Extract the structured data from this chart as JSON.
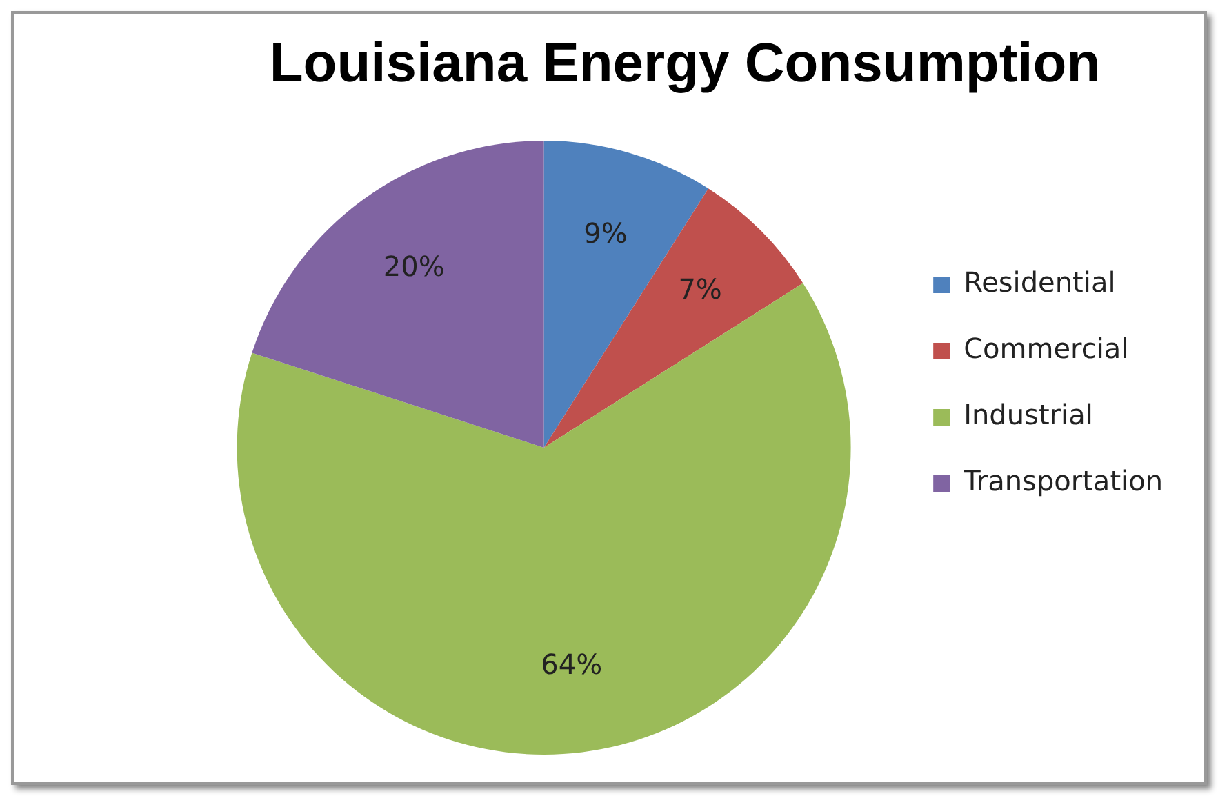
{
  "chart_data": {
    "type": "pie",
    "title": "Louisiana Energy Consumption",
    "categories": [
      "Residential",
      "Commercial",
      "Industrial",
      "Transportation"
    ],
    "values": [
      9,
      7,
      64,
      20
    ],
    "colors": [
      "#4f81bd",
      "#c0504d",
      "#9bbb59",
      "#8064a2"
    ],
    "value_labels": [
      "9%",
      "7%",
      "64%",
      "20%"
    ],
    "legend": "right"
  }
}
